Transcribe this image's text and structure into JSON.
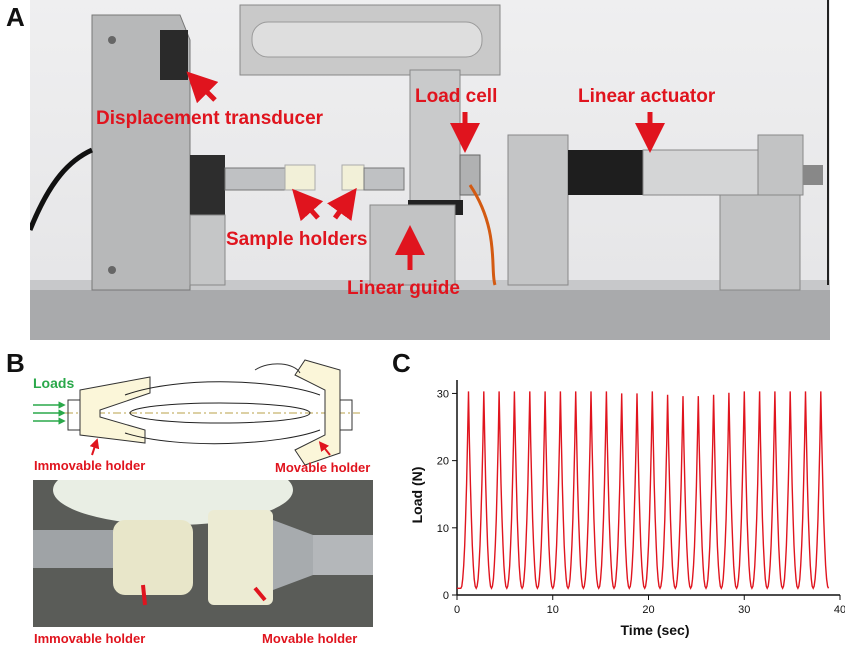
{
  "panels": {
    "a_letter": "A",
    "b_letter": "B",
    "c_letter": "C"
  },
  "panel_a": {
    "labels": {
      "displacement_transducer": "Displacement transducer",
      "load_cell": "Load cell",
      "linear_actuator": "Linear actuator",
      "sample_holders": "Sample holders",
      "linear_guide": "Linear guide"
    }
  },
  "panel_b": {
    "loads": "Loads",
    "schematic_immovable": "Immovable holder",
    "schematic_movable": "Movable holder",
    "photo_immovable": "Immovable holder",
    "photo_movable": "Movable holder"
  },
  "chart_data": {
    "type": "line",
    "xlabel": "Time (sec)",
    "ylabel": "Load (N)",
    "xlim": [
      0,
      40
    ],
    "ylim": [
      0,
      32
    ],
    "xticks": [
      0,
      10,
      20,
      30,
      40
    ],
    "yticks": [
      0,
      10,
      20,
      30
    ],
    "grid": false,
    "series_color": "#e0141e",
    "series": [
      {
        "peak_times": [
          1.2,
          2.8,
          4.4,
          6.0,
          7.6,
          9.2,
          10.8,
          12.4,
          14.0,
          15.6,
          17.2,
          18.8,
          20.4,
          22.0,
          23.6,
          25.2,
          26.8,
          28.4,
          30.0,
          31.6,
          33.2,
          34.8,
          36.4,
          38.0
        ],
        "peak_loads": [
          30.3,
          30.3,
          30.3,
          30.3,
          30.3,
          30.3,
          30.3,
          30.3,
          30.3,
          30.3,
          30.0,
          30.0,
          30.3,
          29.8,
          29.6,
          29.6,
          29.8,
          30.1,
          30.3,
          30.3,
          30.3,
          30.3,
          30.3,
          30.3
        ],
        "trough_load": 1.0
      }
    ]
  }
}
